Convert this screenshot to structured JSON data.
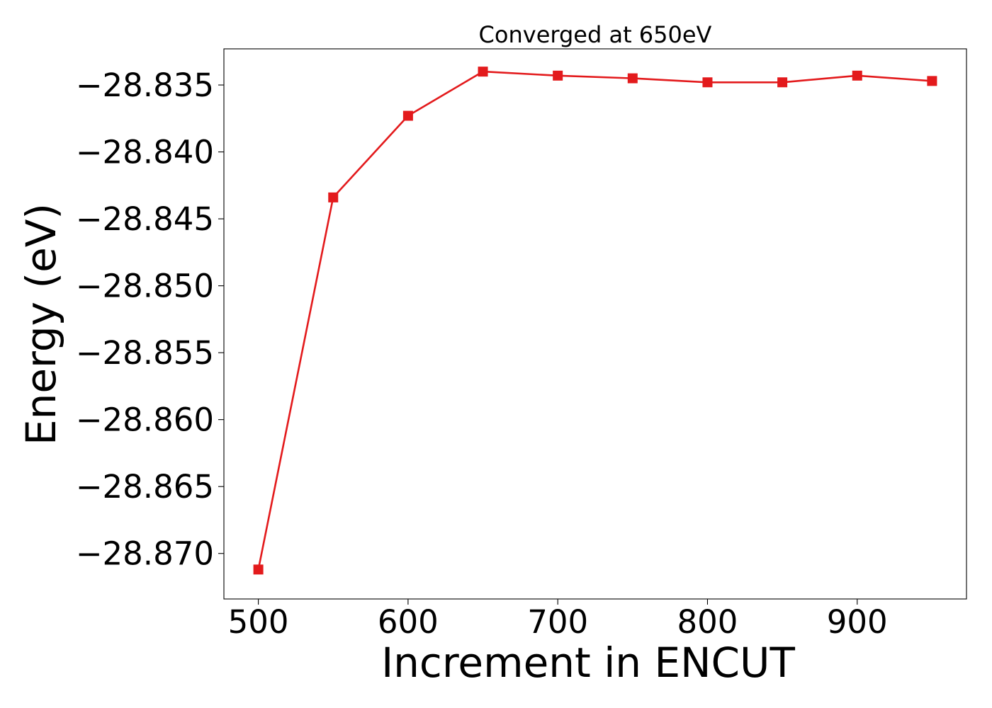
{
  "chart_data": {
    "type": "line",
    "title": "Converged at 650eV",
    "xlabel": "Increment in ENCUT",
    "ylabel": "Energy (eV)",
    "x": [
      500,
      550,
      600,
      650,
      700,
      750,
      800,
      850,
      900,
      950
    ],
    "series": [
      {
        "values": [
          -28.8712,
          -28.8434,
          -28.8373,
          -28.834,
          -28.8343,
          -28.8345,
          -28.8348,
          -28.8348,
          -28.8343,
          -28.8347
        ],
        "color": "#e31a1c",
        "marker": "square"
      }
    ],
    "xlim": [
      477,
      973
    ],
    "ylim": [
      -28.8734,
      -28.8323
    ],
    "x_ticks": [
      500,
      600,
      700,
      800,
      900
    ],
    "x_tick_labels": [
      "500",
      "600",
      "700",
      "800",
      "900"
    ],
    "y_ticks": [
      -28.835,
      -28.84,
      -28.845,
      -28.85,
      -28.855,
      -28.86,
      -28.865,
      -28.87
    ],
    "y_tick_labels": [
      "−28.835",
      "−28.840",
      "−28.845",
      "−28.850",
      "−28.855",
      "−28.860",
      "−28.865",
      "−28.870"
    ],
    "grid": false,
    "legend": "none"
  }
}
